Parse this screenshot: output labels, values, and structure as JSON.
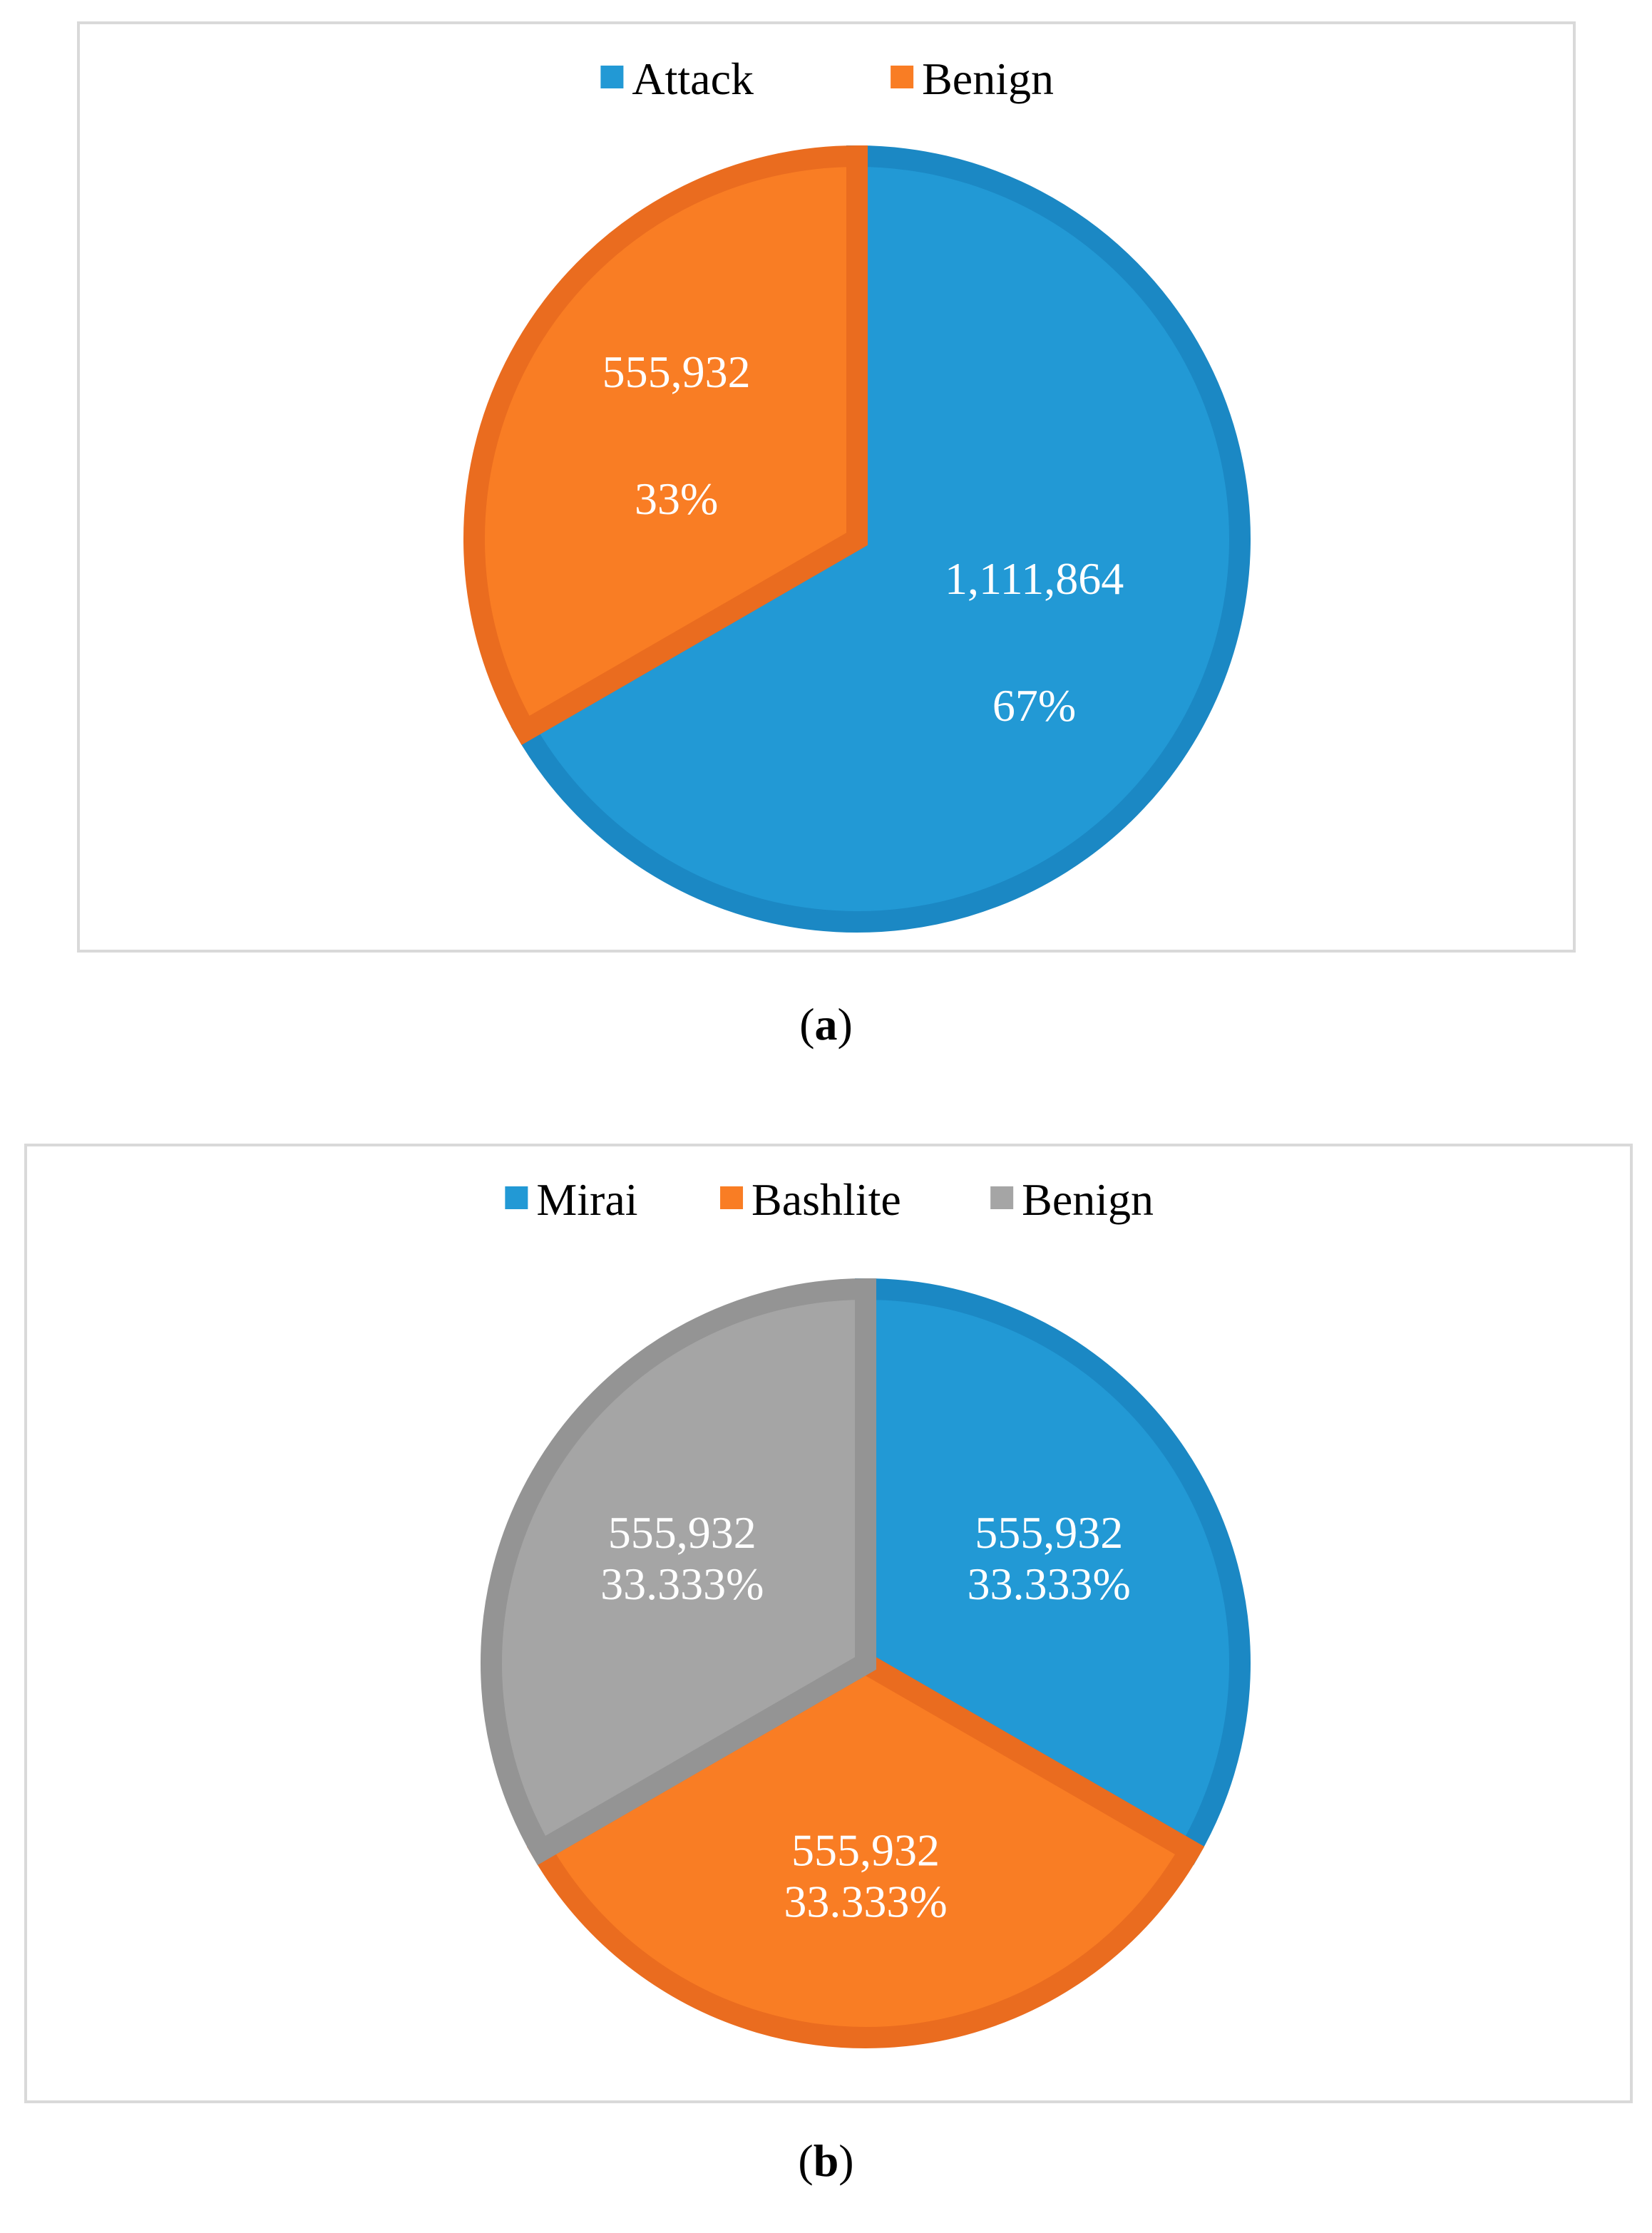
{
  "chart_data": [
    {
      "panel": "a",
      "type": "pie",
      "legend_position": "top",
      "labels": [
        "Attack",
        "Benign"
      ],
      "values": [
        1111864,
        555932
      ],
      "value_labels": [
        "1,111,864",
        "555,932"
      ],
      "percent_labels": [
        "67%",
        "33%"
      ],
      "colors": [
        "#2299d5",
        "#f97d24"
      ],
      "edge_colors": [
        "#1b88c4",
        "#ea6c1f"
      ],
      "start_angle_deg": 0,
      "direction": "clockwise"
    },
    {
      "panel": "b",
      "type": "pie",
      "legend_position": "top",
      "labels": [
        "Mirai",
        "Bashlite",
        "Benign"
      ],
      "values": [
        555932,
        555932,
        555932
      ],
      "value_labels": [
        "555,932",
        "555,932",
        "555,932"
      ],
      "percent_labels": [
        "33.333%",
        "33.333%",
        "33.333%"
      ],
      "colors": [
        "#2299d5",
        "#f97d24",
        "#a5a5a5"
      ],
      "edge_colors": [
        "#1b88c4",
        "#ea6c1f",
        "#949494"
      ],
      "start_angle_deg": 0,
      "direction": "clockwise"
    }
  ],
  "captions": {
    "a_open": "(",
    "a_letter": "a",
    "a_close": ")",
    "b_open": "(",
    "b_letter": "b",
    "b_close": ")"
  }
}
